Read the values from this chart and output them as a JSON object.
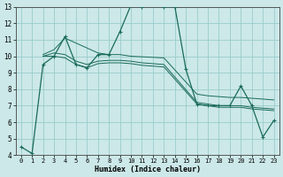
{
  "xlabel": "Humidex (Indice chaleur)",
  "xlim": [
    -0.5,
    23.5
  ],
  "ylim": [
    4,
    13
  ],
  "xtick_vals": [
    0,
    1,
    2,
    3,
    4,
    5,
    6,
    7,
    8,
    9,
    10,
    11,
    12,
    13,
    14,
    15,
    16,
    17,
    18,
    19,
    20,
    21,
    22,
    23
  ],
  "ytick_vals": [
    4,
    5,
    6,
    7,
    8,
    9,
    10,
    11,
    12,
    13
  ],
  "bg_color": "#cce8e8",
  "grid_color": "#99cccc",
  "line_color": "#1a6b5a",
  "main_x": [
    0,
    1,
    2,
    3,
    4,
    5,
    6,
    7,
    8,
    9,
    10,
    11,
    12,
    13,
    14,
    15,
    16,
    17,
    18,
    19,
    20,
    21,
    22,
    23
  ],
  "main_y": [
    4.5,
    4.1,
    9.5,
    10.0,
    11.2,
    9.5,
    9.3,
    10.1,
    10.1,
    11.5,
    13.1,
    13.0,
    13.1,
    13.0,
    13.0,
    9.2,
    7.1,
    7.0,
    7.0,
    7.0,
    8.2,
    7.0,
    5.1,
    6.1
  ],
  "env1_x": [
    2,
    3,
    4,
    7,
    8,
    9,
    10,
    13,
    16,
    17,
    18,
    19,
    20,
    21,
    22,
    23
  ],
  "env1_y": [
    10.1,
    10.4,
    11.1,
    10.2,
    10.1,
    10.1,
    10.0,
    9.9,
    7.7,
    7.6,
    7.55,
    7.5,
    7.5,
    7.45,
    7.4,
    7.35
  ],
  "env2_x": [
    2,
    3,
    4,
    5,
    6,
    7,
    8,
    9,
    10,
    11,
    12,
    13,
    16,
    17,
    18,
    19,
    20,
    21,
    22,
    23
  ],
  "env2_y": [
    10.0,
    10.2,
    10.1,
    9.7,
    9.5,
    9.7,
    9.75,
    9.75,
    9.7,
    9.6,
    9.55,
    9.5,
    7.2,
    7.1,
    7.0,
    7.0,
    7.0,
    6.9,
    6.85,
    6.8
  ],
  "env3_x": [
    2,
    3,
    4,
    5,
    6,
    7,
    8,
    9,
    10,
    11,
    12,
    13,
    16,
    17,
    18,
    19,
    20,
    21,
    22,
    23
  ],
  "env3_y": [
    10.0,
    10.0,
    9.9,
    9.5,
    9.3,
    9.55,
    9.6,
    9.6,
    9.55,
    9.45,
    9.4,
    9.35,
    7.1,
    7.0,
    6.9,
    6.9,
    6.9,
    6.8,
    6.75,
    6.7
  ]
}
